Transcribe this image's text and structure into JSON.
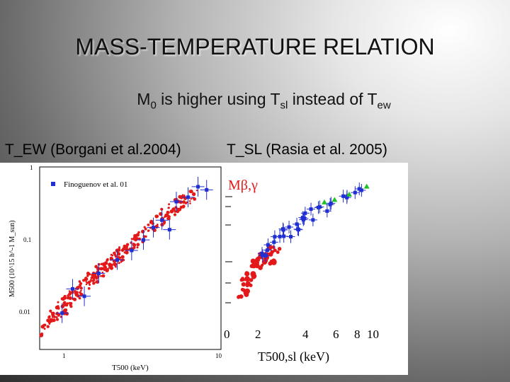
{
  "slide": {
    "title": "MASS-TEMPERATURE RELATION",
    "subtitle": {
      "main": "M",
      "sub_main": "0",
      "text1": " is higher using T",
      "sub1": "sl",
      "text2": " instead of T",
      "sub2": "ew"
    },
    "left_label": "T_EW (Borgani et al.2004)",
    "right_label": "T_SL (Rasia et al. 2005)",
    "right_overlay": "Mβ,γ"
  },
  "colors": {
    "sim": "#e31919",
    "obs": "#1f2fd2",
    "green": "#22c02a",
    "panel": "#ffffff"
  },
  "chart_data": [
    {
      "type": "scatter",
      "panel": "left",
      "xlabel": "T500 (keV)",
      "ylabel": "M500 (10^15 h^-1 M_sun)",
      "x_ticks": [
        "1",
        "10"
      ],
      "y_ticks": [
        "1",
        "0.1",
        "0.01"
      ],
      "xscale": "log",
      "yscale": "log",
      "xlim": [
        0.6,
        10
      ],
      "ylim": [
        0.004,
        1
      ],
      "legend": {
        "label": "Finoguenov et al. 01",
        "position": "top-left"
      },
      "series": [
        {
          "name": "",
          "color": "#e31919",
          "marker": "circle",
          "points": [
            [
              0.7,
              0.009
            ],
            [
              0.8,
              0.012
            ],
            [
              0.9,
              0.016
            ],
            [
              1.0,
              0.02
            ],
            [
              1.2,
              0.028
            ],
            [
              1.4,
              0.036
            ],
            [
              1.6,
              0.045
            ],
            [
              1.8,
              0.055
            ],
            [
              2.0,
              0.065
            ],
            [
              2.3,
              0.085
            ],
            [
              2.6,
              0.1
            ],
            [
              3.0,
              0.13
            ],
            [
              3.5,
              0.17
            ],
            [
              4.0,
              0.21
            ],
            [
              4.5,
              0.26
            ],
            [
              5.0,
              0.3
            ],
            [
              5.5,
              0.35
            ],
            [
              6.0,
              0.4
            ]
          ]
        },
        {
          "name": "Finoguenov et al. 01",
          "color": "#1f2fd2",
          "marker": "square",
          "points": [
            [
              0.85,
              0.012
            ],
            [
              1.0,
              0.025
            ],
            [
              1.2,
              0.02
            ],
            [
              1.5,
              0.04
            ],
            [
              2.0,
              0.06
            ],
            [
              2.5,
              0.08
            ],
            [
              3.0,
              0.11
            ],
            [
              3.5,
              0.16
            ],
            [
              4.0,
              0.2
            ],
            [
              4.5,
              0.15
            ],
            [
              5.0,
              0.35
            ],
            [
              6.0,
              0.4
            ],
            [
              7.0,
              0.55
            ],
            [
              8.0,
              0.5
            ]
          ]
        }
      ]
    },
    {
      "type": "scatter",
      "panel": "right",
      "xlabel": "T500,sl (keV)",
      "x_ticks": [
        "0",
        "2",
        "4",
        "6",
        "8",
        "10"
      ],
      "xlim": [
        0,
        10
      ],
      "series": [
        {
          "name": "",
          "color": "#e31919",
          "marker": "circle",
          "points": [
            [
              1.0,
              0.06
            ],
            [
              1.3,
              0.08
            ],
            [
              1.6,
              0.09
            ],
            [
              2.0,
              0.12
            ],
            [
              2.4,
              0.14
            ],
            [
              2.8,
              0.13
            ],
            [
              3.2,
              0.16
            ]
          ]
        },
        {
          "name": "",
          "color": "#1f2fd2",
          "marker": "square",
          "points": [
            [
              2.5,
              0.15
            ],
            [
              3.0,
              0.18
            ],
            [
              3.5,
              0.21
            ],
            [
              4.0,
              0.25
            ],
            [
              4.5,
              0.28
            ],
            [
              5.0,
              0.32
            ],
            [
              5.5,
              0.36
            ],
            [
              6.0,
              0.4
            ],
            [
              7.0,
              0.45
            ],
            [
              8.0,
              0.55
            ],
            [
              9.0,
              0.65
            ]
          ]
        },
        {
          "name": "",
          "color": "#22c02a",
          "marker": "triangle",
          "points": [
            [
              6.6,
              0.5
            ],
            [
              7.3,
              0.53
            ],
            [
              8.3,
              0.6
            ],
            [
              9.5,
              0.72
            ]
          ]
        }
      ]
    }
  ]
}
